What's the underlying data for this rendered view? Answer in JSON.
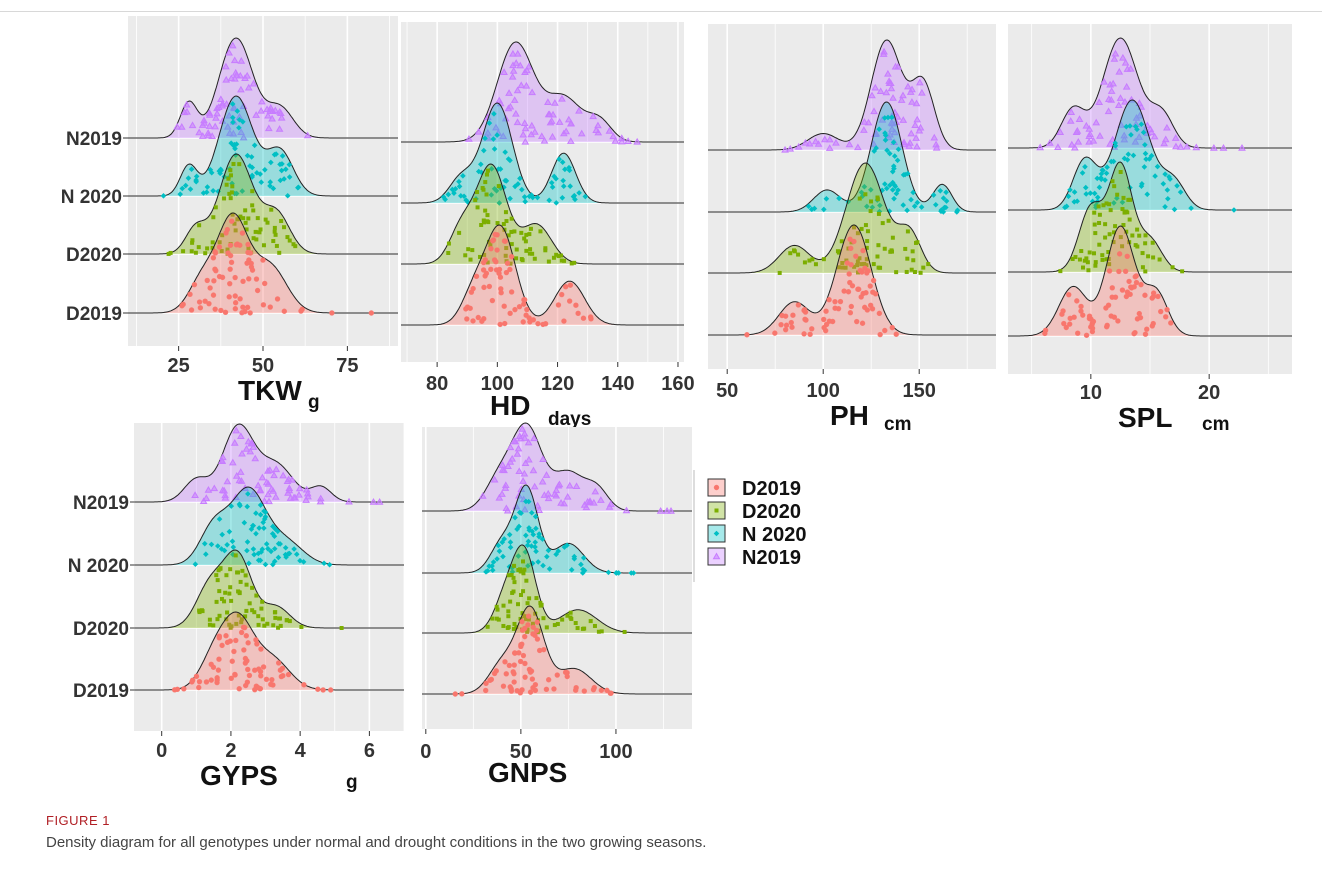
{
  "caption": {
    "label": "FIGURE 1",
    "text": "Density diagram for all genotypes under normal and drought conditions in the two growing seasons."
  },
  "groups": [
    "N2019",
    "N 2020",
    "D2020",
    "D2019"
  ],
  "colors": {
    "D2019": "#f8766d",
    "D2020": "#7cae00",
    "N 2020": "#00bfc4",
    "N2019": "#c77cff",
    "panel_bg": "#ebebeb",
    "grid": "#ffffff"
  },
  "legend": {
    "entries": [
      {
        "label": "D2019",
        "symbol": "circle"
      },
      {
        "label": "D2020",
        "symbol": "square"
      },
      {
        "label": "N 2020",
        "symbol": "diamond"
      },
      {
        "label": "N2019",
        "symbol": "triangle"
      }
    ]
  },
  "chart_data": [
    {
      "type": "area",
      "id": "tkw",
      "xlabel": "TKW",
      "xunit": "g",
      "xlim": [
        10,
        90
      ],
      "xticks": [
        25,
        50,
        75
      ],
      "show_ylabels": true,
      "series": [
        {
          "name": "N2019",
          "peaks": [
            [
              28,
              2.5,
              0.35
            ],
            [
              42,
              5,
              1.0
            ],
            [
              55,
              4,
              0.3
            ]
          ],
          "range": [
            22,
            67
          ]
        },
        {
          "name": "N 2020",
          "peaks": [
            [
              28,
              2.5,
              0.3
            ],
            [
              42,
              5,
              1.0
            ],
            [
              55,
              4,
              0.45
            ]
          ],
          "range": [
            20,
            65
          ]
        },
        {
          "name": "D2020",
          "peaks": [
            [
              30,
              3,
              0.25
            ],
            [
              42,
              5,
              1.0
            ],
            [
              54,
              4,
              0.4
            ]
          ],
          "range": [
            22,
            62
          ]
        },
        {
          "name": "D2019",
          "peaks": [
            [
              32,
              4,
              0.35
            ],
            [
              41,
              4.5,
              1.0
            ],
            [
              52,
              5,
              0.5
            ]
          ],
          "range": [
            25,
            83
          ]
        }
      ]
    },
    {
      "type": "area",
      "id": "hd",
      "xlabel": "HD",
      "xunit": "days",
      "xlim": [
        68,
        162
      ],
      "xticks": [
        80,
        100,
        120,
        140,
        160
      ],
      "show_ylabels": false,
      "series": [
        {
          "name": "N2019",
          "peaks": [
            [
              106,
              6,
              1.0
            ],
            [
              122,
              6,
              0.45
            ],
            [
              134,
              4,
              0.2
            ]
          ],
          "range": [
            88,
            150
          ]
        },
        {
          "name": "N 2020",
          "peaks": [
            [
              88,
              4,
              0.25
            ],
            [
              100,
              5,
              1.0
            ],
            [
              122,
              4,
              0.5
            ]
          ],
          "range": [
            82,
            130
          ]
        },
        {
          "name": "D2020",
          "peaks": [
            [
              88,
              4,
              0.35
            ],
            [
              98,
              5,
              1.0
            ],
            [
              113,
              5,
              0.4
            ]
          ],
          "range": [
            80,
            126
          ]
        },
        {
          "name": "D2019",
          "peaks": [
            [
              92,
              4,
              0.3
            ],
            [
              101,
              5,
              1.0
            ],
            [
              124,
              5,
              0.45
            ]
          ],
          "range": [
            88,
            132
          ]
        }
      ]
    },
    {
      "type": "area",
      "id": "ph",
      "xlabel": "PH",
      "xunit": "cm",
      "xlim": [
        40,
        190
      ],
      "xticks": [
        50,
        100,
        150
      ],
      "show_ylabels": false,
      "series": [
        {
          "name": "N2019",
          "peaks": [
            [
              100,
              8,
              0.15
            ],
            [
              133,
              8,
              1.0
            ],
            [
              152,
              6,
              0.6
            ]
          ],
          "range": [
            68,
            180
          ]
        },
        {
          "name": "N 2020",
          "peaks": [
            [
              102,
              7,
              0.2
            ],
            [
              133,
              8,
              1.0
            ],
            [
              162,
              5,
              0.25
            ]
          ],
          "range": [
            62,
            170
          ]
        },
        {
          "name": "D2020",
          "peaks": [
            [
              85,
              8,
              0.25
            ],
            [
              122,
              10,
              1.0
            ],
            [
              145,
              6,
              0.35
            ]
          ],
          "range": [
            55,
            160
          ]
        },
        {
          "name": "D2019",
          "peaks": [
            [
              85,
              8,
              0.3
            ],
            [
              116,
              9,
              1.0
            ]
          ],
          "range": [
            55,
            145
          ]
        }
      ]
    },
    {
      "type": "area",
      "id": "spl",
      "xlabel": "SPL",
      "xunit": "cm",
      "xlim": [
        3,
        27
      ],
      "xticks": [
        10,
        20
      ],
      "show_ylabels": false,
      "series": [
        {
          "name": "N2019",
          "peaks": [
            [
              8.5,
              1,
              0.35
            ],
            [
              12.5,
              1.5,
              1.0
            ],
            [
              16,
              1,
              0.3
            ]
          ],
          "range": [
            5,
            25
          ]
        },
        {
          "name": "N 2020",
          "peaks": [
            [
              9.5,
              1,
              0.45
            ],
            [
              13.5,
              1.5,
              1.0
            ],
            [
              17,
              1,
              0.25
            ]
          ],
          "range": [
            6,
            24
          ]
        },
        {
          "name": "D2020",
          "peaks": [
            [
              10,
              1,
              0.6
            ],
            [
              12.5,
              1,
              1.0
            ],
            [
              15,
              1,
              0.3
            ]
          ],
          "range": [
            6,
            21
          ]
        },
        {
          "name": "D2019",
          "peaks": [
            [
              8.5,
              1.2,
              0.45
            ],
            [
              12.5,
              1.2,
              1.0
            ],
            [
              15.5,
              1,
              0.4
            ]
          ],
          "range": [
            6,
            17
          ]
        }
      ]
    },
    {
      "type": "area",
      "id": "gyps",
      "xlabel": "GYPS",
      "xunit": "g",
      "xlim": [
        -0.8,
        7
      ],
      "xticks": [
        0,
        2,
        4,
        6
      ],
      "show_ylabels": true,
      "series": [
        {
          "name": "N2019",
          "peaks": [
            [
              1.0,
              0.35,
              0.3
            ],
            [
              2.2,
              0.45,
              1.0
            ],
            [
              3.3,
              0.5,
              0.5
            ],
            [
              4.6,
              0.3,
              0.2
            ]
          ],
          "range": [
            0.5,
            6.5
          ]
        },
        {
          "name": "N 2020",
          "peaks": [
            [
              1.5,
              0.4,
              0.5
            ],
            [
              2.5,
              0.5,
              1.0
            ],
            [
              3.6,
              0.5,
              0.3
            ]
          ],
          "range": [
            0.8,
            5
          ]
        },
        {
          "name": "D2020",
          "peaks": [
            [
              1.4,
              0.4,
              0.6
            ],
            [
              2.2,
              0.4,
              1.0
            ],
            [
              3.3,
              0.4,
              0.3
            ]
          ],
          "range": [
            0.8,
            5.2
          ]
        },
        {
          "name": "D2019",
          "peaks": [
            [
              1.5,
              0.4,
              0.45
            ],
            [
              2.2,
              0.45,
              1.0
            ],
            [
              3.2,
              0.5,
              0.45
            ]
          ],
          "range": [
            0.3,
            5.5
          ]
        }
      ]
    },
    {
      "type": "area",
      "id": "gnps",
      "xlabel": "GNPS",
      "xunit": "",
      "xlim": [
        -2,
        140
      ],
      "xticks": [
        0,
        50,
        100
      ],
      "show_ylabels": false,
      "series": [
        {
          "name": "N2019",
          "peaks": [
            [
              38,
              7,
              0.35
            ],
            [
              53,
              8,
              1.0
            ],
            [
              75,
              8,
              0.45
            ],
            [
              90,
              6,
              0.25
            ]
          ],
          "range": [
            15,
            130
          ]
        },
        {
          "name": "N 2020",
          "peaks": [
            [
              40,
              6,
              0.35
            ],
            [
              53,
              6,
              1.0
            ],
            [
              75,
              8,
              0.35
            ]
          ],
          "range": [
            25,
            112
          ]
        },
        {
          "name": "D2020",
          "peaks": [
            [
              42,
              6,
              0.45
            ],
            [
              52,
              6,
              1.0
            ],
            [
              80,
              10,
              0.3
            ]
          ],
          "range": [
            28,
            108
          ]
        },
        {
          "name": "D2019",
          "peaks": [
            [
              40,
              7,
              0.35
            ],
            [
              55,
              7,
              1.0
            ],
            [
              78,
              9,
              0.3
            ]
          ],
          "range": [
            15,
            105
          ]
        }
      ]
    }
  ]
}
